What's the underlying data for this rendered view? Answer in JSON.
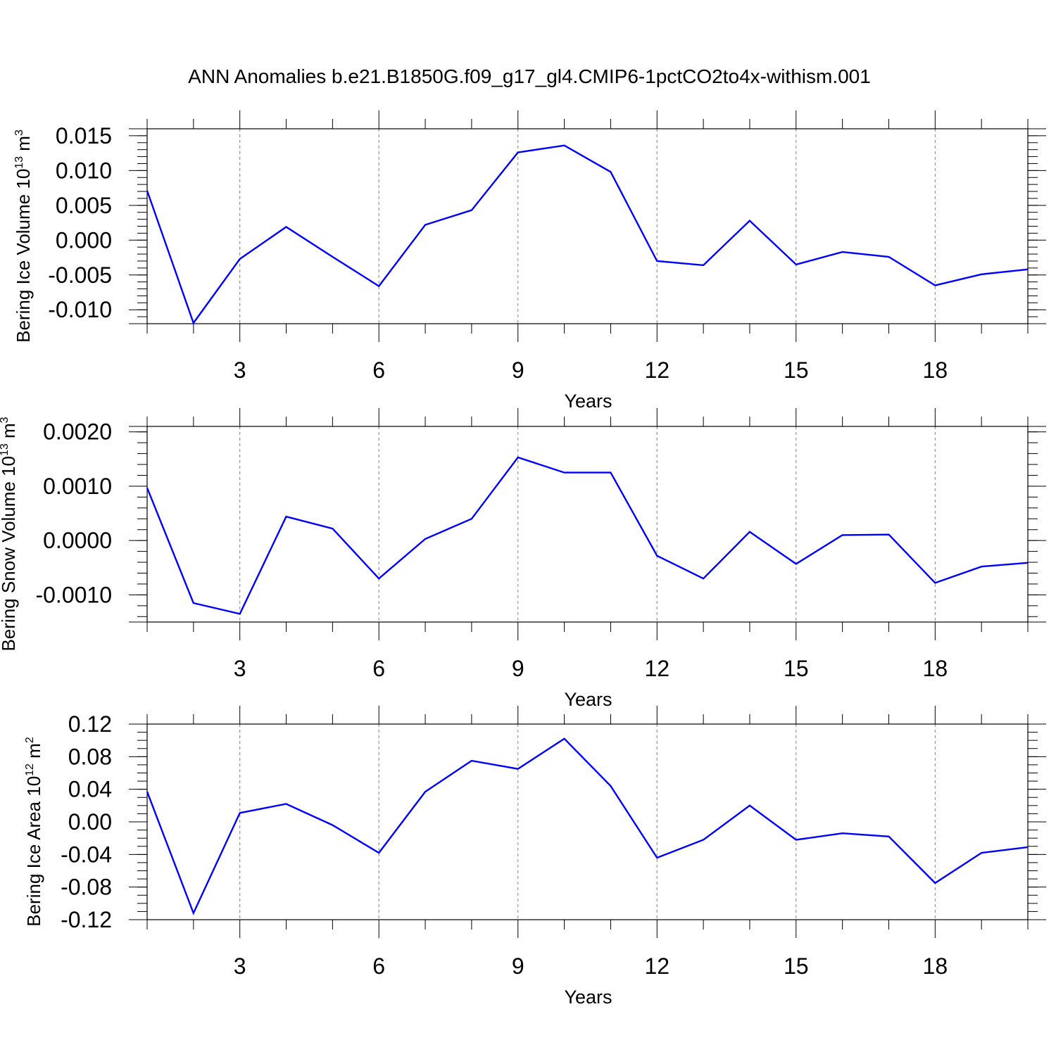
{
  "title": "ANN Anomalies b.e21.B1850G.f09_g17_gl4.CMIP6-1pctCO2to4x-withism.001",
  "colors": {
    "line": "#0000ff",
    "axis": "#000000",
    "grid": "#808080",
    "background": "#ffffff"
  },
  "chart_data": [
    {
      "type": "line",
      "xlabel": "Years",
      "ylabel": "Bering Ice Volume 10",
      "ylabel_exp": "13",
      "ylabel_unit": " m",
      "ylabel_unit_exp": "3",
      "xlim": [
        1,
        20
      ],
      "ylim": [
        -0.012,
        0.016
      ],
      "xticks": [
        3,
        6,
        9,
        12,
        15,
        18
      ],
      "xtick_labels": [
        "3",
        "6",
        "9",
        "12",
        "15",
        "18"
      ],
      "yticks": [
        -0.01,
        -0.005,
        0.0,
        0.005,
        0.01,
        0.015
      ],
      "ytick_labels": [
        "-0.010",
        "-0.005",
        "0.000",
        "0.005",
        "0.010",
        "0.015"
      ],
      "y_minor_step": 0.001,
      "x": [
        1,
        2,
        3,
        4,
        5,
        6,
        7,
        8,
        9,
        10,
        11,
        12,
        13,
        14,
        15,
        16,
        17,
        18,
        19,
        20
      ],
      "values": [
        0.0071,
        -0.0119,
        -0.0027,
        0.0019,
        -0.0024,
        -0.0066,
        0.0022,
        0.0043,
        0.0126,
        0.0136,
        0.0098,
        -0.003,
        -0.0036,
        0.0028,
        -0.0035,
        -0.0017,
        -0.0024,
        -0.0065,
        -0.0049,
        -0.0042
      ],
      "grid": true
    },
    {
      "type": "line",
      "xlabel": "Years",
      "ylabel": "Bering Snow Volume 10",
      "ylabel_exp": "13",
      "ylabel_unit": " m",
      "ylabel_unit_exp": "3",
      "xlim": [
        1,
        20
      ],
      "ylim": [
        -0.0015,
        0.0021
      ],
      "xticks": [
        3,
        6,
        9,
        12,
        15,
        18
      ],
      "xtick_labels": [
        "3",
        "6",
        "9",
        "12",
        "15",
        "18"
      ],
      "yticks": [
        -0.001,
        0.0,
        0.001,
        0.002
      ],
      "ytick_labels": [
        "-0.0010",
        "0.0000",
        "0.0010",
        "0.0020"
      ],
      "y_minor_step": 0.0002,
      "x": [
        1,
        2,
        3,
        4,
        5,
        6,
        7,
        8,
        9,
        10,
        11,
        12,
        13,
        14,
        15,
        16,
        17,
        18,
        19,
        20
      ],
      "values": [
        0.00097,
        -0.00115,
        -0.00135,
        0.00044,
        0.00022,
        -0.0007,
        3e-05,
        0.0004,
        0.00153,
        0.00125,
        0.00125,
        -0.00028,
        -0.0007,
        0.00016,
        -0.00043,
        0.0001,
        0.00011,
        -0.00078,
        -0.00048,
        -0.00041
      ],
      "grid": true
    },
    {
      "type": "line",
      "xlabel": "Years",
      "ylabel": "Bering Ice Area 10",
      "ylabel_exp": "12",
      "ylabel_unit": " m",
      "ylabel_unit_exp": "2",
      "xlim": [
        1,
        20
      ],
      "ylim": [
        -0.12,
        0.12
      ],
      "xticks": [
        3,
        6,
        9,
        12,
        15,
        18
      ],
      "xtick_labels": [
        "3",
        "6",
        "9",
        "12",
        "15",
        "18"
      ],
      "yticks": [
        -0.12,
        -0.08,
        -0.04,
        0.0,
        0.04,
        0.08,
        0.12
      ],
      "ytick_labels": [
        "-0.12",
        "-0.08",
        "-0.04",
        "0.00",
        "0.04",
        "0.08",
        "0.12"
      ],
      "y_minor_step": 0.01,
      "x": [
        1,
        2,
        3,
        4,
        5,
        6,
        7,
        8,
        9,
        10,
        11,
        12,
        13,
        14,
        15,
        16,
        17,
        18,
        19,
        20
      ],
      "values": [
        0.037,
        -0.112,
        0.011,
        0.022,
        -0.004,
        -0.038,
        0.037,
        0.075,
        0.065,
        0.102,
        0.044,
        -0.044,
        -0.022,
        0.02,
        -0.022,
        -0.014,
        -0.018,
        -0.075,
        -0.038,
        -0.031
      ],
      "grid": true
    }
  ]
}
